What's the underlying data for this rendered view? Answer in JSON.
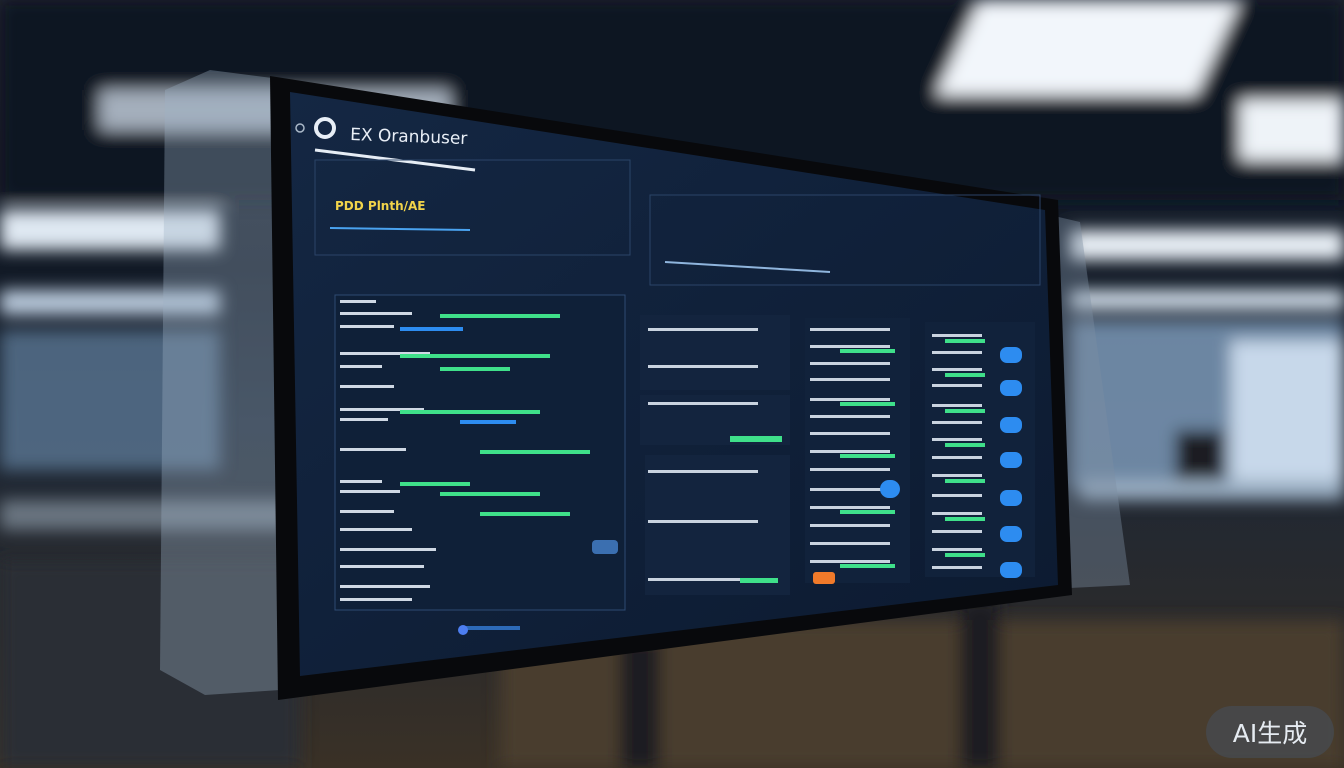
{
  "screen": {
    "title": "EX Oranbuser",
    "header_label": "PDD Plnth/AE"
  },
  "colors": {
    "accent_green": "#3fe08a",
    "accent_blue": "#2d8cf0",
    "alert_orange": "#f07a2a",
    "screen_bg": "#0f1d33"
  },
  "watermark": "AI生成"
}
